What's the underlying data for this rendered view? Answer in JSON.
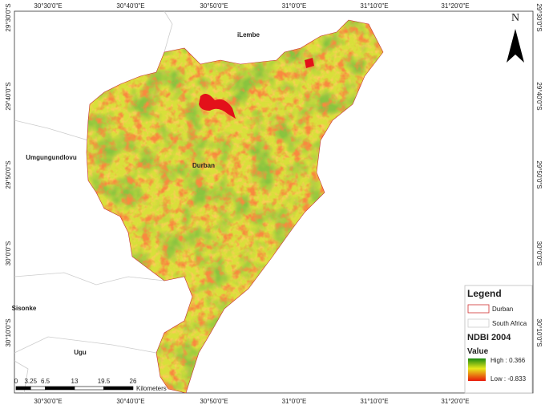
{
  "graticule": {
    "top": [
      "30°30'0\"E",
      "30°40'0\"E",
      "30°50'0\"E",
      "31°0'0\"E",
      "31°10'0\"E",
      "31°20'0\"E"
    ],
    "bottom": [
      "30°30'0\"E",
      "30°40'0\"E",
      "30°50'0\"E",
      "31°0'0\"E",
      "31°10'0\"E",
      "31°20'0\"E"
    ],
    "left": [
      "29°30'0\"S",
      "29°40'0\"S",
      "29°50'0\"S",
      "30°0'0\"S",
      "30°10'0\"S"
    ],
    "right": [
      "29°30'0\"S",
      "29°40'0\"S",
      "29°50'0\"S",
      "30°0'0\"S",
      "30°10'0\"S"
    ]
  },
  "places": [
    "iLembe",
    "Umgungundlovu",
    "Durban",
    "Sisonke",
    "Ugu"
  ],
  "north": "N",
  "legend": {
    "title": "Legend",
    "items": [
      "Durban",
      "South Africa"
    ],
    "layer": "NDBI 2004",
    "value_title": "Value",
    "high": "High : 0.366",
    "low": "Low : -0.833"
  },
  "scale_bar": {
    "ticks": [
      0,
      3.25,
      6.5,
      13,
      19.5,
      26
    ],
    "unit": "Kilometers"
  }
}
